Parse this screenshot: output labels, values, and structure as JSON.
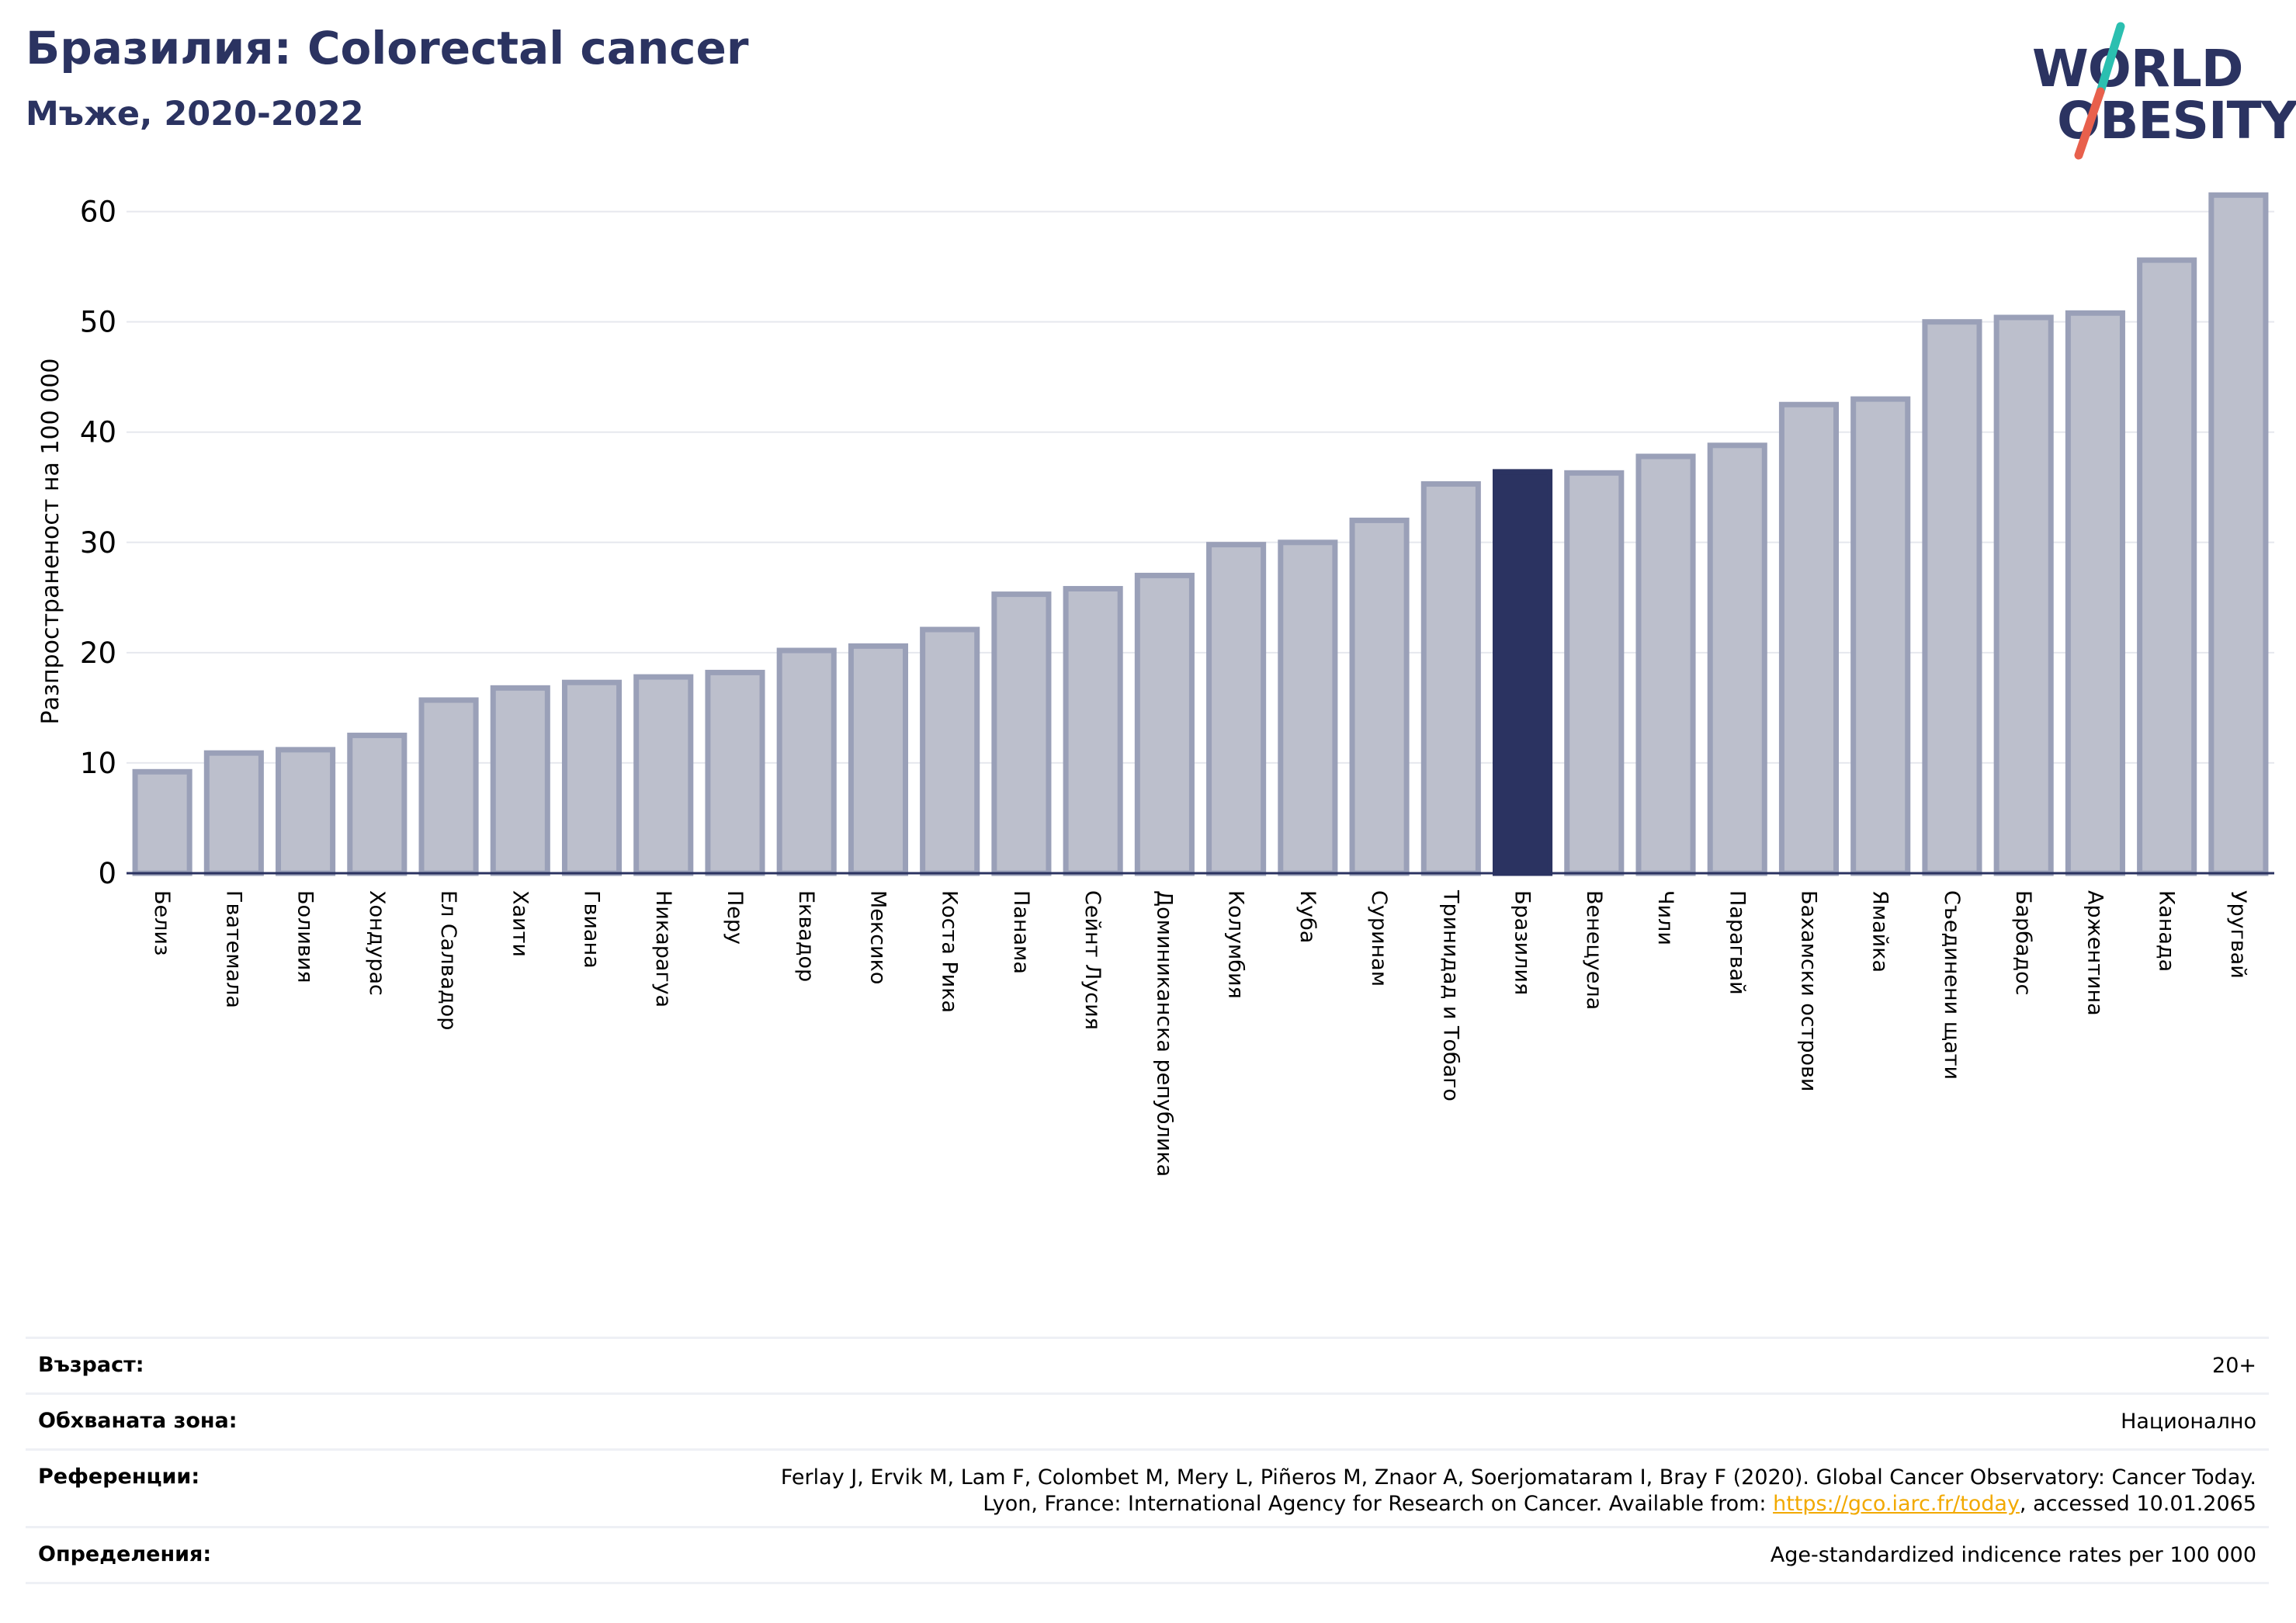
{
  "header": {
    "title": "Бразилия: Colorectal cancer",
    "subtitle": "Мъже, 2020-2022"
  },
  "logo": {
    "line1": "WORLD",
    "line2": "OBESITY",
    "accent_colors": [
      "#2bbfb0",
      "#e8604c"
    ]
  },
  "colors": {
    "highlight": "#2b3361",
    "bar_fill": "#bcbfcc",
    "bar_edge": "#9aa0b8",
    "grid": "#e6e8ee"
  },
  "chart_data": {
    "type": "bar",
    "ylabel": "Разпространеност  на 100 000",
    "ylim": [
      0,
      63
    ],
    "yticks": [
      0,
      10,
      20,
      30,
      40,
      50,
      60
    ],
    "grid": true,
    "highlight_category": "Бразилия",
    "categories": [
      "Белиз",
      "Гватемала",
      "Боливия",
      "Хондурас",
      "Ел Салвадор",
      "Хаити",
      "Гвиана",
      "Никарагуа",
      "Перу",
      "Еквадор",
      "Мексико",
      "Коста Рика",
      "Панама",
      "Сейнт Лусия",
      "Доминиканска република",
      "Колумбия",
      "Куба",
      "Суринам",
      "Тринидад и Тобаго",
      "Бразилия",
      "Венецуела",
      "Чили",
      "Парагвай",
      "Бахамски острови",
      "Ямайка",
      "Съединени щати",
      "Барбадос",
      "Аржентина",
      "Канада",
      "Уругвай"
    ],
    "values": [
      9.2,
      10.9,
      11.2,
      12.5,
      15.7,
      16.8,
      17.3,
      17.8,
      18.2,
      20.2,
      20.6,
      22.1,
      25.3,
      25.8,
      27.0,
      29.8,
      30.0,
      32.0,
      35.3,
      36.4,
      36.3,
      37.8,
      38.8,
      42.5,
      43.0,
      50.0,
      50.4,
      50.8,
      55.6,
      61.5
    ]
  },
  "info": {
    "age_label": "Възраст:",
    "age_value": "20+",
    "area_label": "Обхваната зона:",
    "area_value": "Национално",
    "ref_label": "Референции:",
    "ref_line1": "Ferlay J, Ervik M, Lam F, Colombet M, Mery L, Piñeros M, Znaor A, Soerjomataram I, Bray F (2020). Global Cancer Observatory: Cancer Today.",
    "ref_line2_prefix": "Lyon, France: International Agency for Research on Cancer. Available from: ",
    "ref_link": "https://gco.iarc.fr/today",
    "ref_line2_suffix": ", accessed 10.01.2065",
    "def_label": "Определения:",
    "def_value": "Age-standardized indicence rates per 100 000"
  }
}
